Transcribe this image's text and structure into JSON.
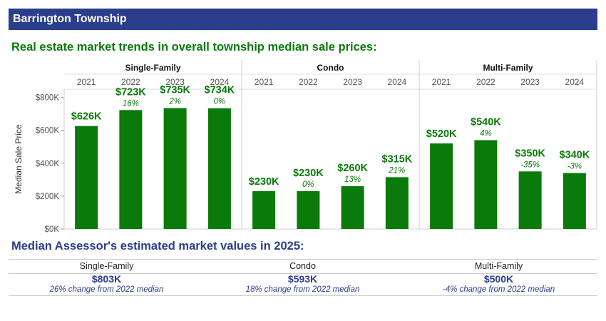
{
  "header": {
    "title": "Barrington Township"
  },
  "trends_heading": "Real estate market trends in overall township median sale prices:",
  "assessor_heading": "Median Assessor's estimated market values in 2025:",
  "assessor": [
    {
      "category": "Single-Family",
      "value": "$803K",
      "change": "26% change from 2022 median"
    },
    {
      "category": "Condo",
      "value": "$593K",
      "change": "18% change from 2022 median"
    },
    {
      "category": "Multi-Family",
      "value": "$500K",
      "change": "-4% change from 2022 median"
    }
  ],
  "colors": {
    "bar": "#0a7a0a",
    "header_bg": "#2b3e8c",
    "label_green": "#0a7a0a",
    "assessor_blue": "#2b3e8c"
  },
  "chart_data": {
    "type": "bar",
    "ylabel": "Median Sale Price",
    "ylim": [
      0,
      850
    ],
    "yticks": [
      0,
      200,
      400,
      600,
      800
    ],
    "ytick_labels": [
      "$0K",
      "$200K",
      "$400K",
      "$600K",
      "$800K"
    ],
    "grid": false,
    "panels": [
      {
        "name": "Single-Family",
        "categories": [
          "2021",
          "2022",
          "2023",
          "2024"
        ],
        "values": [
          626,
          723,
          735,
          734
        ],
        "labels": [
          "$626K",
          "$723K",
          "$735K",
          "$734K"
        ],
        "changes": [
          "",
          "16%",
          "2%",
          "0%"
        ]
      },
      {
        "name": "Condo",
        "categories": [
          "2021",
          "2022",
          "2023",
          "2024"
        ],
        "values": [
          230,
          230,
          260,
          315
        ],
        "labels": [
          "$230K",
          "$230K",
          "$260K",
          "$315K"
        ],
        "changes": [
          "",
          "0%",
          "13%",
          "21%"
        ]
      },
      {
        "name": "Multi-Family",
        "categories": [
          "2021",
          "2022",
          "2023",
          "2024"
        ],
        "values": [
          520,
          540,
          350,
          340
        ],
        "labels": [
          "$520K",
          "$540K",
          "$350K",
          "$340K"
        ],
        "changes": [
          "",
          "4%",
          "-35%",
          "-3%"
        ]
      }
    ]
  }
}
